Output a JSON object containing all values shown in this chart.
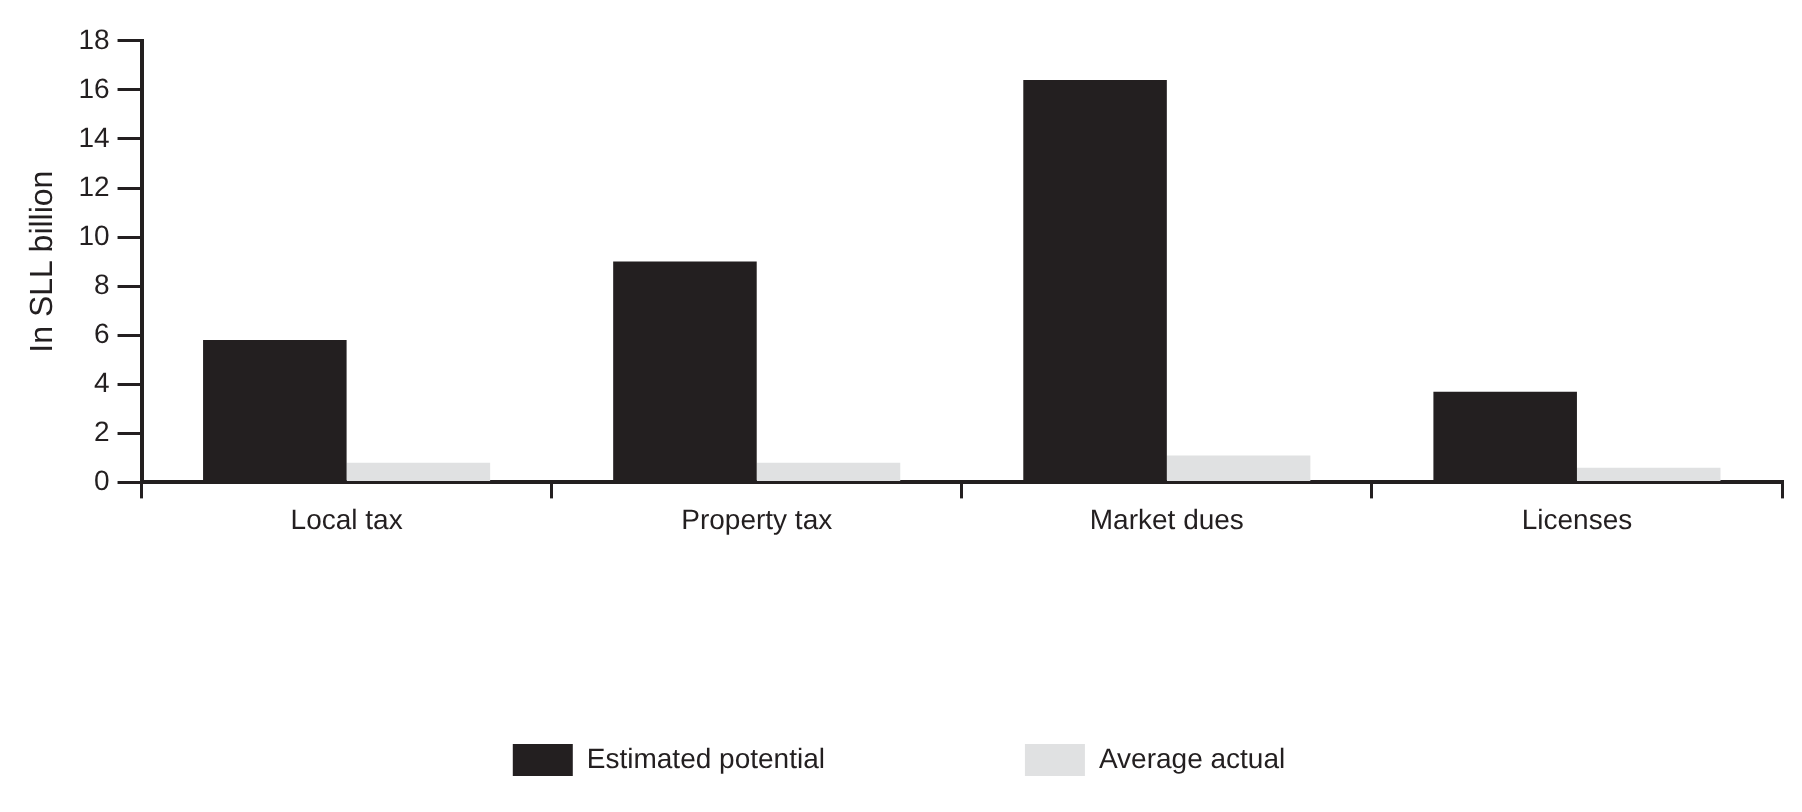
{
  "chart_data": {
    "type": "bar",
    "ylabel": "In SLL billion",
    "categories": [
      "Local tax",
      "Property tax",
      "Market dues",
      "Licenses"
    ],
    "series": [
      {
        "name": "Estimated potential",
        "color": "#231f20",
        "values": [
          5.8,
          9.0,
          16.4,
          3.7
        ]
      },
      {
        "name": "Average actual",
        "color": "#e0e1e2",
        "values": [
          0.8,
          0.8,
          1.1,
          0.6
        ]
      }
    ],
    "ylim": [
      0,
      18
    ],
    "yticks": [
      0,
      2,
      4,
      6,
      8,
      10,
      12,
      14,
      16,
      18
    ],
    "grid": false,
    "legend": "bottom"
  }
}
